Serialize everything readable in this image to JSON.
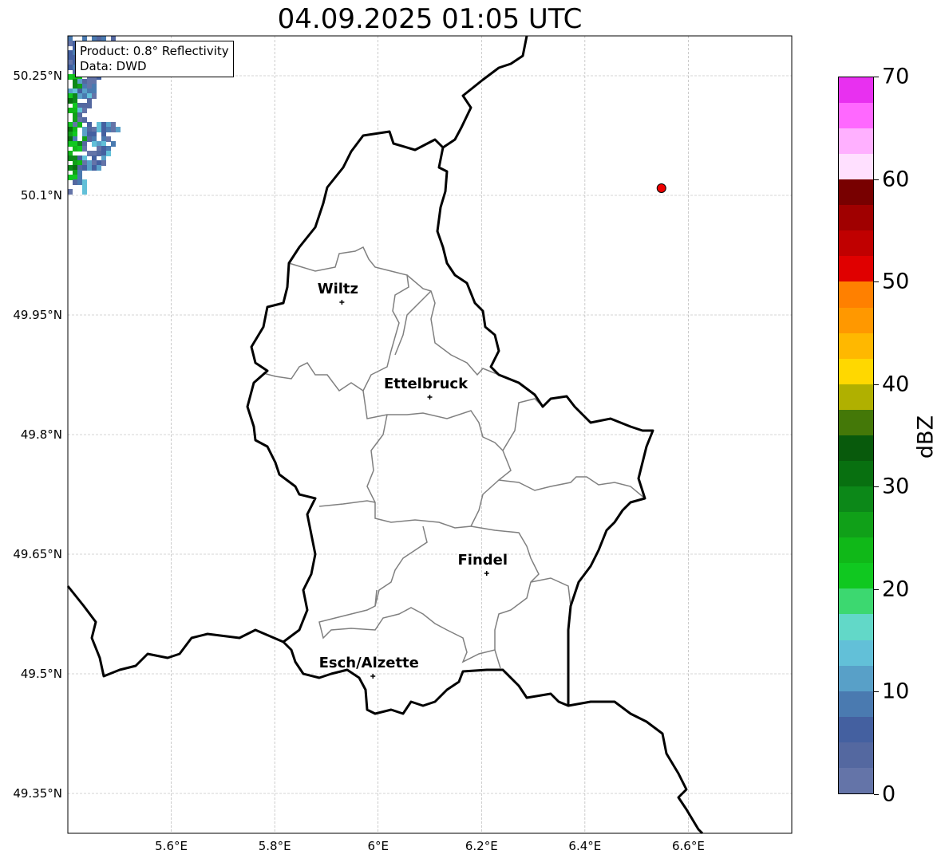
{
  "title": "04.09.2025 01:05 UTC",
  "info": {
    "product": "Product: 0.8° Reflectivity",
    "data": "Data: DWD"
  },
  "extent": {
    "lon": [
      5.4,
      6.8
    ],
    "lat": [
      49.3,
      50.3
    ]
  },
  "x_ticks": [
    {
      "lon": 5.6,
      "label": "5.6°E"
    },
    {
      "lon": 5.8,
      "label": "5.8°E"
    },
    {
      "lon": 6.0,
      "label": "6°E"
    },
    {
      "lon": 6.2,
      "label": "6.2°E"
    },
    {
      "lon": 6.4,
      "label": "6.4°E"
    },
    {
      "lon": 6.6,
      "label": "6.6°E"
    }
  ],
  "y_ticks": [
    {
      "lat": 50.25,
      "label": "50.25°N"
    },
    {
      "lat": 50.1,
      "label": "50.1°N"
    },
    {
      "lat": 49.95,
      "label": "49.95°N"
    },
    {
      "lat": 49.8,
      "label": "49.8°N"
    },
    {
      "lat": 49.65,
      "label": "49.65°N"
    },
    {
      "lat": 49.5,
      "label": "49.5°N"
    },
    {
      "lat": 49.35,
      "label": "49.35°N"
    }
  ],
  "cities": [
    {
      "name": "Wiltz",
      "lon": 5.93,
      "lat": 49.966
    },
    {
      "name": "Ettelbruck",
      "lon": 6.1,
      "lat": 49.847
    },
    {
      "name": "Findel",
      "lon": 6.21,
      "lat": 49.626
    },
    {
      "name": "Esch/Alzette",
      "lon": 5.99,
      "lat": 49.497
    }
  ],
  "radar_site": {
    "lon": 6.548,
    "lat": 50.109,
    "color": "#ee0000"
  },
  "colorbar": {
    "unit": "dBZ",
    "min": 0,
    "max": 70,
    "step": 2.5,
    "tick_labels": [
      "0",
      "10",
      "20",
      "30",
      "40",
      "50",
      "60",
      "70"
    ],
    "colors": [
      "#6474a8",
      "#5468a0",
      "#4460a0",
      "#4a7ab0",
      "#58a0c8",
      "#62c0d8",
      "#62d8c8",
      "#3cd870",
      "#10c820",
      "#10b818",
      "#10a018",
      "#0c8818",
      "#087010",
      "#085a0c",
      "#447808",
      "#b0b000",
      "#ffd800",
      "#ffb800",
      "#ff9800",
      "#ff8000",
      "#e00000",
      "#c00000",
      "#a00000",
      "#780000",
      "#ffe0ff",
      "#ffb0ff",
      "#ff68ff",
      "#e830f0"
    ]
  }
}
